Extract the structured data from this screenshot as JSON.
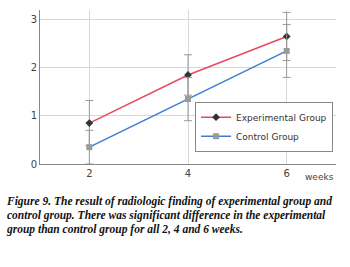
{
  "chart_data": {
    "type": "line",
    "caption": "Figure 9. The result of radiologic finding of experimental group and control group. There was significant difference in the experimental group than control group for all 2, 4 and 6 weeks.",
    "x_label": "weeks",
    "x": [
      2,
      4,
      6
    ],
    "series": [
      {
        "name": "Experimental Group",
        "color": "#e8495f",
        "marker": "diamond",
        "values": [
          0.85,
          1.85,
          2.65
        ],
        "errors": [
          0.47,
          0.42,
          0.5
        ]
      },
      {
        "name": "Control Group",
        "color": "#3a7fd0",
        "marker": "square",
        "values": [
          0.35,
          1.35,
          2.35
        ],
        "errors": [
          0.35,
          0.45,
          0.55
        ]
      }
    ],
    "xlim": [
      1,
      7
    ],
    "xticks": [
      2,
      4,
      6
    ],
    "ylim": [
      0,
      3.2
    ],
    "yticks": [
      0,
      1,
      2,
      3
    ],
    "grid": true,
    "legend": "lower right"
  }
}
